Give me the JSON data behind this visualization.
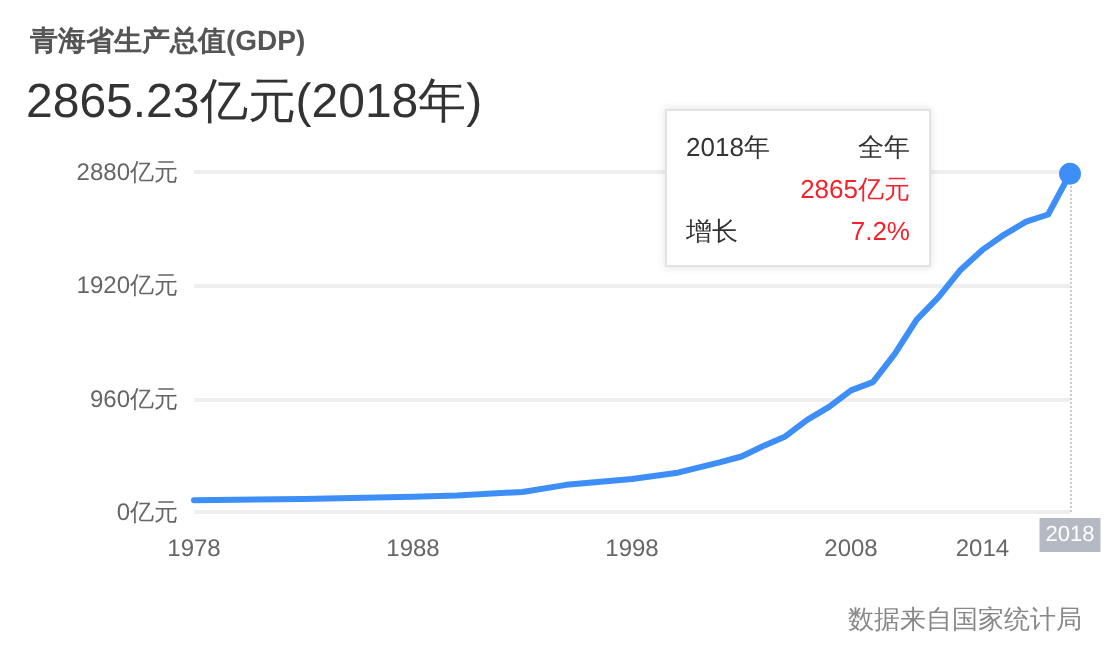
{
  "chart_data": {
    "type": "line",
    "title": "青海省生产总值(GDP)",
    "subtitle": "2865.23亿元(2018年)",
    "x": [
      1978,
      1983,
      1988,
      1990,
      1993,
      1995,
      1998,
      2000,
      2002,
      2003,
      2004,
      2005,
      2006,
      2007,
      2008,
      2009,
      2010,
      2011,
      2012,
      2013,
      2014,
      2015,
      2016,
      2017,
      2018
    ],
    "series": [
      {
        "color": "#3d8ef7",
        "values": [
          100,
          110,
          130,
          140,
          170,
          230,
          280,
          330,
          420,
          470,
          560,
          640,
          780,
          890,
          1030,
          1100,
          1340,
          1630,
          1820,
          2050,
          2220,
          2350,
          2460,
          2520,
          2865
        ]
      }
    ],
    "xlim": [
      1978,
      2018
    ],
    "xticks": [
      1978,
      1988,
      1998,
      2008,
      2014
    ],
    "ylim": [
      0,
      2880
    ],
    "yticks": [
      {
        "value": 0,
        "label": "0亿元"
      },
      {
        "value": 960,
        "label": "960亿元"
      },
      {
        "value": 1920,
        "label": "1920亿元"
      },
      {
        "value": 2880,
        "label": "2880亿元"
      }
    ],
    "grid": "y",
    "marker": "none",
    "line_style": "solid",
    "ref_lines": [
      {
        "axis": "x",
        "value": 2018,
        "label": "2018",
        "line_style": "dotted",
        "color": "#c8ccd4"
      }
    ],
    "annotations": [
      "2018年",
      "全年",
      "2865亿元",
      "增长",
      "7.2%",
      "数据来自国家统计局"
    ]
  }
}
